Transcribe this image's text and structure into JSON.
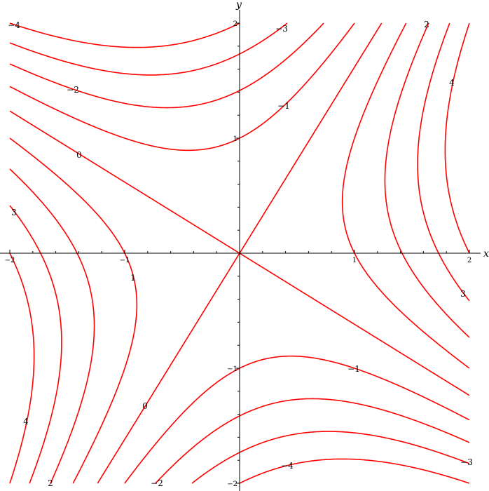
{
  "chart_data": {
    "type": "contour",
    "title": "",
    "function_levels": [
      -4,
      -3,
      -2,
      -1,
      0,
      1,
      2,
      3,
      4
    ],
    "xlabel": "x",
    "ylabel": "y",
    "xlim": [
      -2,
      2
    ],
    "ylim": [
      -2,
      2
    ],
    "x_ticks": [
      "−2",
      "−1",
      "1",
      "2"
    ],
    "y_ticks": [
      "2",
      "1",
      "−1",
      "−2"
    ],
    "contour_labels": [
      "−4",
      "−3",
      "−2",
      "−1",
      "0",
      "4",
      "2",
      "3",
      "1",
      "3",
      "−1",
      "0",
      "4",
      "2",
      "−2",
      "−4",
      "−3"
    ],
    "grid": false,
    "line_color": "#ff0000"
  }
}
